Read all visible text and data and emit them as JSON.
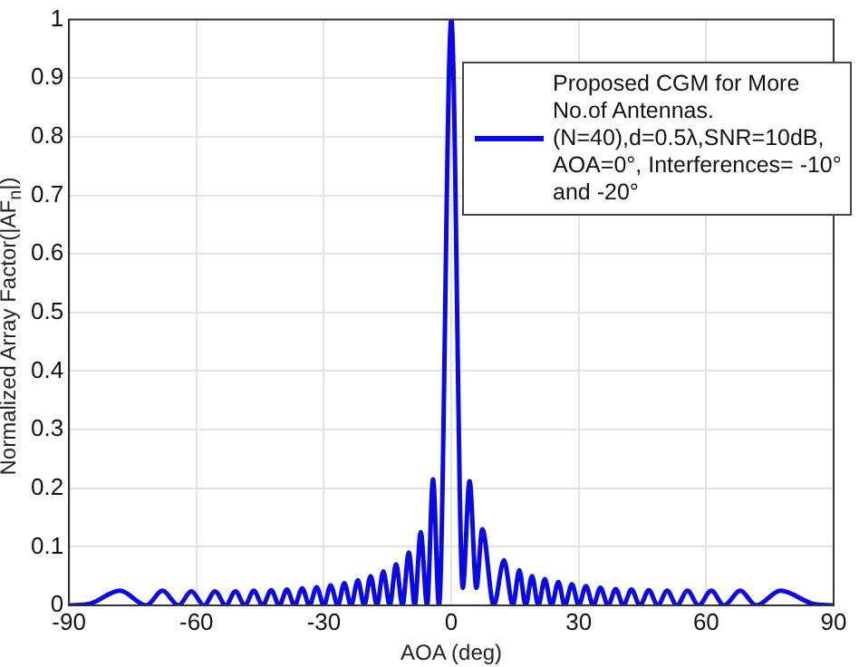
{
  "chart_data": {
    "type": "line",
    "xlabel": "AOA (deg)",
    "ylabel": "Normalized Array Factor(|AF$_{n}$|)",
    "xlim": [
      -90,
      90
    ],
    "xticks": [
      -90,
      -60,
      -30,
      0,
      30,
      60,
      90
    ],
    "ylim": [
      0,
      1
    ],
    "yticks": [
      0,
      0.1,
      0.2,
      0.3,
      0.4,
      0.5,
      0.6,
      0.7,
      0.8,
      0.9,
      1
    ],
    "grid": true,
    "legend": "top right",
    "marker": "none",
    "line_style": "solid",
    "series": [
      {
        "name": "Proposed CGM for More No.of Antennas. (N=40),d=0.5λ,SNR=10dB, AOA=0°, Interferences= -10° and -20°",
        "color": "#0a0ae6",
        "x": [
          -90,
          -85,
          -78,
          -71.8,
          -68,
          -64.2,
          -61.2,
          -58.2,
          -55.6,
          -53.1,
          -50.8,
          -48.6,
          -46.5,
          -44.4,
          -42.4,
          -40.5,
          -38.7,
          -36.9,
          -35.1,
          -33.4,
          -31.7,
          -30,
          -28.4,
          -26.7,
          -25.2,
          -23.6,
          -22,
          -20.5,
          -19,
          -17.5,
          -16,
          -14.5,
          -13,
          -11.5,
          -10,
          -8.6,
          -7.2,
          -5.7,
          -4.3,
          -2.9,
          0,
          2.7,
          4.3,
          5.9,
          7.3,
          10,
          12.4,
          14.5,
          16,
          17.5,
          19,
          20.5,
          22,
          23.6,
          25.2,
          26.7,
          28.4,
          30,
          31.7,
          33.4,
          35.1,
          36.9,
          38.7,
          40.5,
          42.4,
          44.4,
          46.5,
          48.6,
          50.8,
          53.1,
          55.6,
          58.2,
          61.2,
          64.2,
          68,
          71.8,
          77.5,
          85,
          90
        ],
        "values": [
          0,
          0.003,
          0.025,
          0,
          0.025,
          0,
          0.024,
          0,
          0.024,
          0,
          0.024,
          0,
          0.025,
          0,
          0.026,
          0,
          0.027,
          0,
          0.029,
          0,
          0.031,
          0,
          0.034,
          0,
          0.038,
          0,
          0.043,
          0,
          0.05,
          0,
          0.058,
          0,
          0.07,
          0,
          0.09,
          0,
          0.125,
          0,
          0.215,
          0,
          1,
          0.03,
          0.212,
          0.03,
          0.13,
          0,
          0.077,
          0,
          0.06,
          0,
          0.05,
          0,
          0.045,
          0,
          0.04,
          0,
          0.036,
          0,
          0.033,
          0,
          0.03,
          0,
          0.028,
          0,
          0.027,
          0,
          0.026,
          0,
          0.025,
          0,
          0.025,
          0,
          0.025,
          0,
          0.025,
          0,
          0.025,
          0.003,
          0
        ]
      }
    ]
  }
}
